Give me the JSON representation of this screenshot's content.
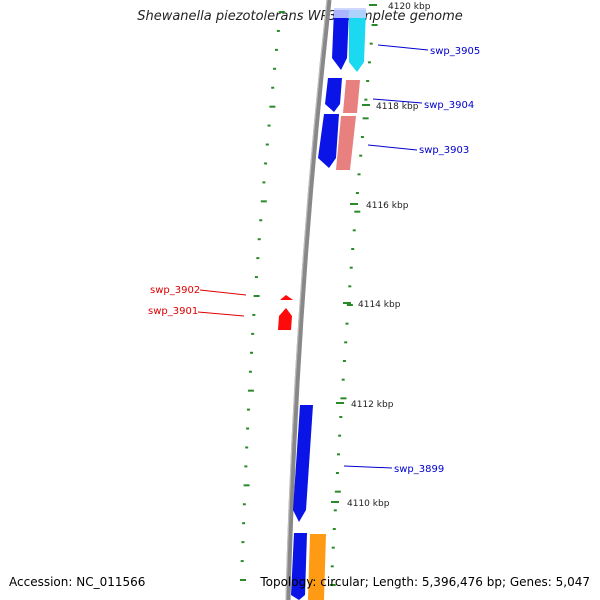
{
  "title": "Shewanella piezotolerans WP3, complete genome",
  "footer": {
    "accession_label": "Accession:",
    "accession": "NC_011566",
    "topology_label": "Topology:",
    "topology": "circular",
    "length_label": "Length:",
    "length": "5,396,476 bp",
    "genes_label": "Genes:",
    "genes": "5,047"
  },
  "ticks": [
    {
      "label": "4120 kbp"
    },
    {
      "label": "4118 kbp"
    },
    {
      "label": "4116 kbp"
    },
    {
      "label": "4114 kbp"
    },
    {
      "label": "4112 kbp"
    },
    {
      "label": "4110 kbp"
    }
  ],
  "genes": [
    {
      "name": "swp_3905",
      "strand": "forward"
    },
    {
      "name": "swp_3904",
      "strand": "forward"
    },
    {
      "name": "swp_3903",
      "strand": "forward"
    },
    {
      "name": "swp_3902",
      "strand": "reverse"
    },
    {
      "name": "swp_3901",
      "strand": "reverse"
    },
    {
      "name": "swp_3899",
      "strand": "forward"
    }
  ],
  "colors": {
    "forward_label": "#0000cc",
    "reverse_label": "#dd0000",
    "backbone": "#888888",
    "tick": "#2a8a2a",
    "cds_forward": "#0a14e6",
    "cds_reverse": "#ff0a0a",
    "trna": "#e88080",
    "rrna": "#ff9a14",
    "cyan": "#1ad9f0"
  }
}
